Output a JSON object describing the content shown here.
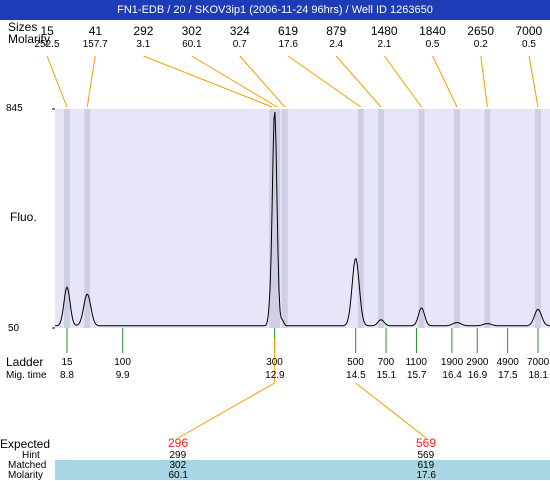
{
  "title": "FN1-EDB / 20 / SKOV3ip1 (2006-11-24 96hrs) / Well ID 1263650",
  "row_labels": {
    "sizes": "Sizes",
    "molarity": "Molarity",
    "fluo": "Fluo.",
    "ladder": "Ladder",
    "mig_time": "Mig. time",
    "expected": "Expected",
    "hint": "Hint",
    "matched": "Matched",
    "molarity_bottom": "Molarity"
  },
  "colors": {
    "title_bg": "#1d3cb5",
    "plot_bg": "#e6e6f8",
    "band": "#cfcfe4",
    "connector": "#f0a000",
    "tick": "#2e8b2e",
    "expected": "#ff2020",
    "row_band": "#a8d6e4"
  },
  "chart_data": {
    "type": "line",
    "ylabel": "Fluo.",
    "ylim": [
      50,
      845
    ],
    "y_tick_labels": [
      "845",
      "50"
    ],
    "peaks": [
      {
        "size": "15",
        "molarity": "252.5",
        "mig_time": 8.8
      },
      {
        "size": "41",
        "molarity": "157.7",
        "mig_time": 9.2
      },
      {
        "size": "292",
        "molarity": "3.1",
        "mig_time": 12.85
      },
      {
        "size": "302",
        "molarity": "60.1",
        "mig_time": 12.95
      },
      {
        "size": "324",
        "molarity": "0.7",
        "mig_time": 13.1
      },
      {
        "size": "619",
        "molarity": "17.6",
        "mig_time": 14.6
      },
      {
        "size": "879",
        "molarity": "2.4",
        "mig_time": 15.0
      },
      {
        "size": "1480",
        "molarity": "2.1",
        "mig_time": 15.8
      },
      {
        "size": "1840",
        "molarity": "0.5",
        "mig_time": 16.5
      },
      {
        "size": "2650",
        "molarity": "0.2",
        "mig_time": 17.1
      },
      {
        "size": "7000",
        "molarity": "0.5",
        "mig_time": 18.1
      }
    ],
    "ladder": [
      {
        "size": "15",
        "mig_time": "8.8"
      },
      {
        "size": "100",
        "mig_time": "9.9"
      },
      {
        "size": "300",
        "mig_time": "12.9"
      },
      {
        "size": "500",
        "mig_time": "14.5"
      },
      {
        "size": "700",
        "mig_time": "15.1"
      },
      {
        "size": "1100",
        "mig_time": "15.7"
      },
      {
        "size": "1900",
        "mig_time": "16.4"
      },
      {
        "size": "2900",
        "mig_time": "16.9"
      },
      {
        "size": "4900",
        "mig_time": "17.5"
      },
      {
        "size": "7000",
        "mig_time": "18.1"
      }
    ],
    "trace": {
      "baseline": 58,
      "peaks": [
        {
          "t": 8.8,
          "height": 140,
          "width": 0.06
        },
        {
          "t": 9.2,
          "height": 115,
          "width": 0.07
        },
        {
          "t": 12.8,
          "height": 35,
          "width": 0.03
        },
        {
          "t": 12.9,
          "height": 785,
          "width": 0.045
        },
        {
          "t": 13.05,
          "height": 20,
          "width": 0.03
        },
        {
          "t": 14.5,
          "height": 245,
          "width": 0.07
        },
        {
          "t": 15.0,
          "height": 22,
          "width": 0.06
        },
        {
          "t": 15.8,
          "height": 65,
          "width": 0.06
        },
        {
          "t": 16.5,
          "height": 12,
          "width": 0.08
        },
        {
          "t": 17.1,
          "height": 8,
          "width": 0.08
        },
        {
          "t": 18.1,
          "height": 60,
          "width": 0.07
        }
      ]
    },
    "expected": [
      {
        "expected": "296",
        "hint": "299",
        "matched": "302",
        "molarity": "60.1",
        "mig_time": 12.9
      },
      {
        "expected": "569",
        "hint": "569",
        "matched": "619",
        "molarity": "17.6",
        "mig_time": 14.5
      }
    ]
  }
}
